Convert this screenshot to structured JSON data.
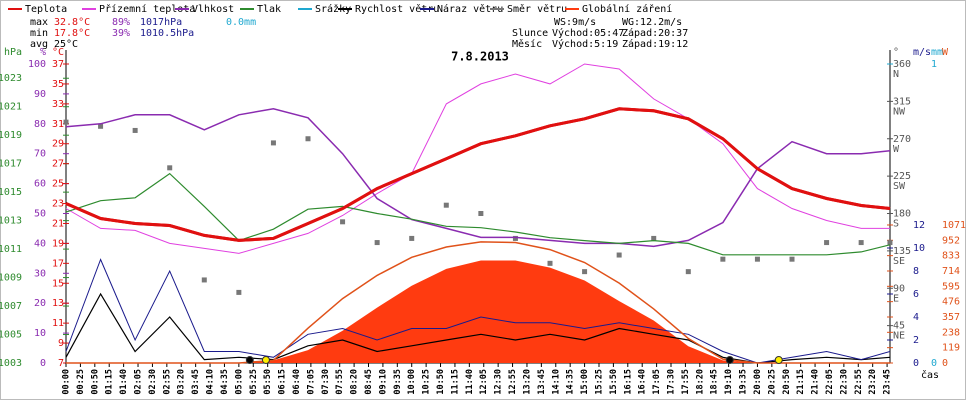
{
  "chart_data": {
    "type": "line",
    "title": "7.8.2013",
    "x_unit_label": "čas",
    "x": [
      "00:00",
      "01:00",
      "02:00",
      "03:00",
      "04:00",
      "05:00",
      "06:00",
      "07:00",
      "08:00",
      "09:00",
      "10:00",
      "11:00",
      "12:00",
      "13:00",
      "14:00",
      "15:00",
      "16:00",
      "17:00",
      "18:00",
      "19:00",
      "20:00",
      "21:00",
      "22:00",
      "23:00",
      "23:50"
    ],
    "xticks": [
      "00:00",
      "00:25",
      "00:50",
      "01:15",
      "01:40",
      "02:05",
      "02:30",
      "02:55",
      "03:20",
      "03:45",
      "04:10",
      "04:35",
      "05:00",
      "05:25",
      "05:50",
      "06:15",
      "06:40",
      "07:05",
      "07:30",
      "07:55",
      "08:20",
      "08:45",
      "09:10",
      "09:35",
      "10:00",
      "10:25",
      "10:50",
      "11:15",
      "11:40",
      "12:05",
      "12:30",
      "12:55",
      "13:20",
      "13:45",
      "14:10",
      "14:35",
      "15:00",
      "15:25",
      "15:50",
      "16:15",
      "16:40",
      "17:05",
      "17:30",
      "17:55",
      "18:20",
      "18:45",
      "19:10",
      "19:35",
      "20:00",
      "20:25",
      "20:50",
      "21:15",
      "21:40",
      "22:05",
      "22:30",
      "22:55",
      "23:20",
      "23:45"
    ],
    "grid": false,
    "axes": {
      "hpa": {
        "label": "hPa",
        "color": "#2e8b2e",
        "ylim": [
          1003,
          1024
        ],
        "yticks": [
          1003,
          1005,
          1007,
          1009,
          1011,
          1013,
          1015,
          1017,
          1019,
          1021,
          1023
        ]
      },
      "pct": {
        "label": "%",
        "color": "#8a2bb0",
        "ylim": [
          0,
          100
        ],
        "yticks": [
          0,
          10,
          20,
          30,
          40,
          50,
          60,
          70,
          80,
          90,
          100
        ]
      },
      "temp": {
        "label": "°C",
        "color": "#e01010",
        "ylim": [
          7,
          37
        ],
        "yticks": [
          7,
          9,
          11,
          13,
          15,
          17,
          19,
          21,
          23,
          25,
          27,
          29,
          31,
          33,
          35,
          37
        ]
      },
      "dir": {
        "label": "°",
        "color": "#555555",
        "ylim": [
          0,
          360
        ],
        "yticks": [
          45,
          90,
          135,
          180,
          225,
          270,
          315,
          360
        ],
        "compass": [
          "NE",
          "E",
          "SE",
          "S",
          "SW",
          "W",
          "NW",
          "N"
        ]
      },
      "ms": {
        "label": "m/s",
        "color": "#1a1a8c",
        "ylim": [
          0,
          26
        ],
        "yticks": [
          0,
          2,
          4,
          6,
          8,
          10,
          12
        ]
      },
      "mm": {
        "label": "mm",
        "color": "#1fa8d0",
        "ylim": [
          0,
          1
        ],
        "yticks": [
          0,
          1
        ]
      },
      "w": {
        "label": "W",
        "color": "#e0521a",
        "ylim": [
          0,
          2320
        ],
        "yticks": [
          0,
          119,
          238,
          357,
          476,
          595,
          714,
          833,
          952,
          1071
        ]
      }
    },
    "series": [
      {
        "name": "Teplota",
        "kind": "line",
        "axis": "temp",
        "color": "#e01010",
        "width": 3,
        "values": [
          23,
          21.5,
          21,
          20.8,
          19.8,
          19.3,
          19.5,
          21,
          22.5,
          24.5,
          26,
          27.5,
          29,
          29.8,
          30.8,
          31.5,
          32.5,
          32.3,
          31.5,
          29.5,
          26.5,
          24.5,
          23.5,
          22.8,
          22.5
        ]
      },
      {
        "name": "Přízemní teplota",
        "kind": "line",
        "axis": "temp",
        "color": "#e040e0",
        "width": 1,
        "values": [
          22.5,
          20.5,
          20.3,
          19,
          18.5,
          18,
          19,
          20,
          21.8,
          24,
          26,
          33,
          35,
          36,
          35,
          37,
          36.5,
          33.5,
          31.5,
          29,
          24.5,
          22.5,
          21.3,
          20.5,
          20.5
        ]
      },
      {
        "name": "Vlhkost",
        "kind": "line",
        "axis": "pct",
        "color": "#8a2bb0",
        "width": 1.5,
        "values": [
          79,
          80,
          83,
          83,
          78,
          83,
          85,
          82,
          70,
          55,
          48,
          45,
          42,
          42,
          41,
          40,
          40,
          39,
          41,
          47,
          65,
          74,
          70,
          70,
          71
        ]
      },
      {
        "name": "Tlak",
        "kind": "line",
        "axis": "hpa",
        "color": "#2e8b2e",
        "width": 1.2,
        "values": [
          1013.6,
          1014.4,
          1014.6,
          1016.3,
          1014,
          1011.6,
          1012.4,
          1013.8,
          1014,
          1013.5,
          1013.1,
          1012.6,
          1012.5,
          1012.2,
          1011.8,
          1011.6,
          1011.4,
          1011.6,
          1011.4,
          1010.6,
          1010.6,
          1010.6,
          1010.6,
          1010.8,
          1011.3
        ]
      },
      {
        "name": "Srážky",
        "kind": "bar",
        "axis": "mm",
        "color": "#1fa8d0",
        "values": [
          0,
          0,
          0,
          0,
          0,
          0,
          0,
          0,
          0,
          0,
          0,
          0,
          0,
          0,
          0,
          0,
          0,
          0,
          0,
          0,
          0,
          0,
          0,
          0,
          0
        ]
      },
      {
        "name": "Rychlost větru",
        "kind": "line",
        "axis": "ms",
        "color": "#000000",
        "width": 1.2,
        "values": [
          0.5,
          6,
          1,
          4,
          0.3,
          0.5,
          0.3,
          1.5,
          2,
          1,
          1.5,
          2,
          2.5,
          2,
          2.5,
          2,
          3,
          2.5,
          2,
          0.5,
          0,
          0.3,
          0.5,
          0.3,
          0.5
        ]
      },
      {
        "name": "Náraz větru",
        "kind": "line",
        "axis": "ms",
        "color": "#1a1a8c",
        "width": 1,
        "values": [
          1,
          9,
          2,
          8,
          1,
          1,
          0.5,
          2.5,
          3,
          2,
          3,
          3,
          4,
          3.5,
          3.5,
          3,
          3.5,
          3,
          2.5,
          1,
          0,
          0.5,
          1,
          0.3,
          1
        ]
      },
      {
        "name": "Směr větru",
        "kind": "scatter",
        "axis": "dir",
        "color": "#777777",
        "values": [
          290,
          285,
          280,
          235,
          100,
          85,
          265,
          270,
          170,
          145,
          150,
          190,
          180,
          150,
          120,
          110,
          130,
          150,
          110,
          125,
          125,
          125,
          145,
          145,
          145
        ]
      },
      {
        "name": "Globální záření",
        "kind": "area",
        "axis": "w",
        "color": "#ff3b10",
        "values": [
          0,
          0,
          0,
          0,
          0,
          0,
          20,
          100,
          250,
          430,
          600,
          730,
          795,
          795,
          740,
          640,
          480,
          330,
          130,
          20,
          0,
          0,
          0,
          0,
          0
        ]
      }
    ],
    "theoretical_radiation": {
      "axis": "w",
      "color": "#e0521a",
      "values": [
        0,
        0,
        0,
        0,
        0,
        0,
        20,
        270,
        500,
        680,
        820,
        900,
        940,
        935,
        880,
        780,
        620,
        420,
        190,
        30,
        0,
        0,
        0,
        0,
        0
      ]
    },
    "stats": {
      "max": {
        "label": "max",
        "temp": "32.8°C",
        "hum": "89%",
        "press": "1017hPa",
        "rain": "0.0mm"
      },
      "min": {
        "label": "min",
        "temp": "17.8°C",
        "hum": "39%",
        "press": "1010.5hPa"
      },
      "avg": {
        "label": "avg",
        "temp": "25°C"
      },
      "ws": "WS:9m/s",
      "wg": "WG:12.2m/s",
      "sun": {
        "label": "Slunce",
        "rise": "Východ:05:47",
        "set": "Západ:20:37"
      },
      "moon": {
        "label": "Měsíc",
        "rise": "Východ:5:19",
        "set": "Západ:19:12"
      }
    }
  }
}
